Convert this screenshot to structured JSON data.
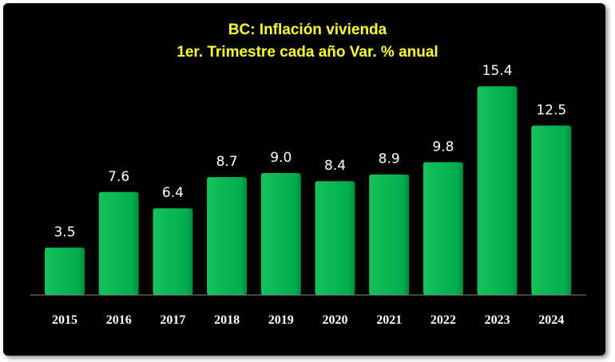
{
  "chart_data": {
    "type": "bar",
    "title": "BC: Inflación vivienda",
    "subtitle": "1er. Trimestre cada año Var. % anual",
    "categories": [
      "2015",
      "2016",
      "2017",
      "2018",
      "2019",
      "2020",
      "2021",
      "2022",
      "2023",
      "2024"
    ],
    "values": [
      3.5,
      7.6,
      6.4,
      8.7,
      9.0,
      8.4,
      8.9,
      9.8,
      15.4,
      12.5
    ],
    "value_labels": [
      "3.5",
      "7.6",
      "6.4",
      "8.7",
      "9.0",
      "8.4",
      "8.9",
      "9.8",
      "15.4",
      "12.5"
    ],
    "xlabel": "",
    "ylabel": "",
    "ylim": [
      0,
      17
    ],
    "grid": false,
    "legend": "none",
    "colors": {
      "background": "#000000",
      "bar": "#00b04f",
      "title": "#ffff33",
      "labels": "#ffffff",
      "axis": "#888888"
    }
  }
}
